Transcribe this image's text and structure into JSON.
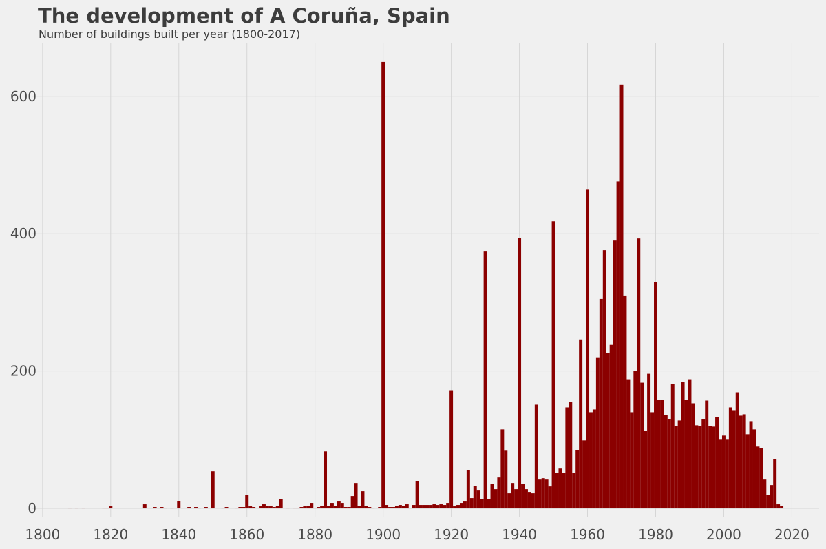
{
  "colors": {
    "bar": "#8b0000",
    "background": "#f0f0f0",
    "grid": "#d6d6d6",
    "text": "#3c3c3c"
  },
  "chart_data": {
    "type": "bar",
    "title": "The development of A Coruña, Spain",
    "subtitle": "Number of buildings built per year (1800-2017)",
    "xlabel": "",
    "ylabel": "",
    "xlim": [
      1797,
      2028
    ],
    "ylim": [
      -12,
      678
    ],
    "xticks": [
      1800,
      1820,
      1840,
      1860,
      1880,
      1900,
      1920,
      1940,
      1960,
      1980,
      2000,
      2020
    ],
    "yticks": [
      0,
      200,
      400,
      600
    ],
    "grid": true,
    "legend": "none",
    "x": [
      1808,
      1809,
      1810,
      1811,
      1812,
      1813,
      1814,
      1815,
      1816,
      1817,
      1818,
      1819,
      1820,
      1821,
      1822,
      1823,
      1824,
      1825,
      1826,
      1827,
      1828,
      1829,
      1830,
      1831,
      1832,
      1833,
      1834,
      1835,
      1836,
      1837,
      1838,
      1839,
      1840,
      1841,
      1842,
      1843,
      1844,
      1845,
      1846,
      1847,
      1848,
      1849,
      1850,
      1851,
      1852,
      1853,
      1854,
      1855,
      1856,
      1857,
      1858,
      1859,
      1860,
      1861,
      1862,
      1863,
      1864,
      1865,
      1866,
      1867,
      1868,
      1869,
      1870,
      1871,
      1872,
      1873,
      1874,
      1875,
      1876,
      1877,
      1878,
      1879,
      1880,
      1881,
      1882,
      1883,
      1884,
      1885,
      1886,
      1887,
      1888,
      1889,
      1890,
      1891,
      1892,
      1893,
      1894,
      1895,
      1896,
      1897,
      1898,
      1899,
      1900,
      1901,
      1902,
      1903,
      1904,
      1905,
      1906,
      1907,
      1908,
      1909,
      1910,
      1911,
      1912,
      1913,
      1914,
      1915,
      1916,
      1917,
      1918,
      1919,
      1920,
      1921,
      1922,
      1923,
      1924,
      1925,
      1926,
      1927,
      1928,
      1929,
      1930,
      1931,
      1932,
      1933,
      1934,
      1935,
      1936,
      1937,
      1938,
      1939,
      1940,
      1941,
      1942,
      1943,
      1944,
      1945,
      1946,
      1947,
      1948,
      1949,
      1950,
      1951,
      1952,
      1953,
      1954,
      1955,
      1956,
      1957,
      1958,
      1959,
      1960,
      1961,
      1962,
      1963,
      1964,
      1965,
      1966,
      1967,
      1968,
      1969,
      1970,
      1971,
      1972,
      1973,
      1974,
      1975,
      1976,
      1977,
      1978,
      1979,
      1980,
      1981,
      1982,
      1983,
      1984,
      1985,
      1986,
      1987,
      1988,
      1989,
      1990,
      1991,
      1992,
      1993,
      1994,
      1995,
      1996,
      1997,
      1998,
      1999,
      2000,
      2001,
      2002,
      2003,
      2004,
      2005,
      2006,
      2007,
      2008,
      2009,
      2010,
      2011,
      2012,
      2013,
      2014,
      2015,
      2016,
      2017
    ],
    "values": [
      1,
      0,
      1,
      0,
      1,
      0,
      0,
      0,
      0,
      0,
      1,
      1,
      3,
      0,
      0,
      0,
      0,
      0,
      0,
      0,
      0,
      0,
      6,
      0,
      0,
      2,
      0,
      2,
      1,
      0,
      1,
      0,
      11,
      0,
      0,
      2,
      0,
      2,
      1,
      0,
      2,
      0,
      54,
      0,
      0,
      1,
      2,
      0,
      0,
      1,
      2,
      2,
      20,
      3,
      2,
      0,
      3,
      6,
      4,
      3,
      2,
      4,
      14,
      0,
      1,
      0,
      1,
      1,
      2,
      3,
      4,
      8,
      1,
      2,
      4,
      83,
      4,
      8,
      4,
      10,
      8,
      2,
      2,
      18,
      37,
      4,
      25,
      4,
      2,
      1,
      0,
      2,
      650,
      5,
      2,
      2,
      4,
      5,
      4,
      6,
      1,
      5,
      40,
      5,
      5,
      5,
      5,
      6,
      5,
      6,
      5,
      8,
      172,
      3,
      5,
      8,
      10,
      56,
      15,
      33,
      26,
      14,
      374,
      14,
      36,
      28,
      45,
      115,
      84,
      22,
      37,
      28,
      394,
      36,
      28,
      24,
      22,
      151,
      42,
      44,
      42,
      32,
      418,
      52,
      58,
      52,
      147,
      155,
      52,
      85,
      246,
      99,
      464,
      140,
      144,
      220,
      305,
      376,
      226,
      238,
      390,
      476,
      617,
      310,
      188,
      140,
      200,
      393,
      183,
      113,
      196,
      140,
      329,
      158,
      158,
      136,
      130,
      181,
      120,
      128,
      184,
      158,
      188,
      153,
      121,
      120,
      130,
      157,
      120,
      119,
      133,
      100,
      106,
      100,
      147,
      143,
      169,
      135,
      137,
      108,
      127,
      115,
      90,
      88,
      42,
      20,
      34,
      72,
      6,
      4
    ]
  }
}
